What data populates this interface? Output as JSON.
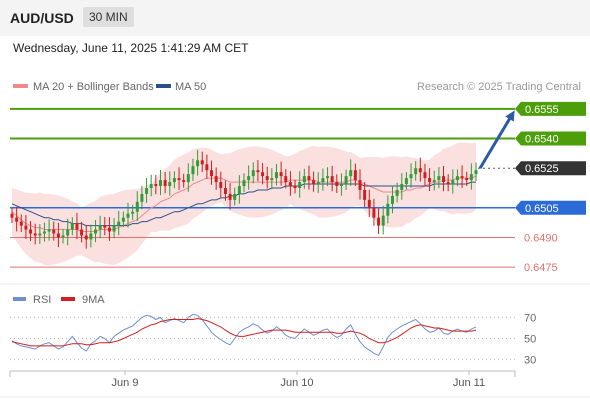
{
  "header": {
    "pair": "AUD/USD",
    "timeframe": "30 MIN"
  },
  "datetime": "Wednesday, June 11, 2025 1:41:29 AM CET",
  "legend": {
    "ma20": "MA 20 + Bollinger Bands",
    "ma50": "MA 50",
    "source": "Research © 2025 Trading Central"
  },
  "rsi_legend": {
    "rsi": "RSI",
    "ma": "9MA"
  },
  "colors": {
    "candle_up": "#2f9e3a",
    "candle_down": "#d31c1c",
    "ma20": "#f08888",
    "ma50": "#2d4f86",
    "band_fill": "#f9d6d6",
    "resistance": "#4c9e0a",
    "support_blue": "#2b6bd6",
    "support_red": "#e46f6f",
    "current": "#333333",
    "arrow": "#2b5aa8",
    "rsi": "#6f8fd0",
    "rsi_ma": "#d21f1f"
  },
  "chart_data": [
    {
      "type": "candlestick",
      "title": "",
      "ylim": [
        0.6469,
        0.6561
      ],
      "x_ticks": [
        "Jun 9",
        "Jun 10",
        "Jun 11"
      ],
      "levels": [
        {
          "label": "0.6555",
          "value": 0.6555,
          "kind": "resistance"
        },
        {
          "label": "0.6540",
          "value": 0.654,
          "kind": "resistance"
        },
        {
          "label": "0.6525",
          "value": 0.6525,
          "kind": "current"
        },
        {
          "label": "0.6505",
          "value": 0.6505,
          "kind": "pivot"
        },
        {
          "label": "0.6490",
          "value": 0.649,
          "kind": "support"
        },
        {
          "label": "0.6475",
          "value": 0.6475,
          "kind": "support"
        }
      ],
      "projection": {
        "from": 0.6525,
        "to": 0.6552
      },
      "close_series": [
        0.65,
        0.6498,
        0.6496,
        0.6494,
        0.6492,
        0.6491,
        0.6492,
        0.6493,
        0.6494,
        0.6492,
        0.649,
        0.6491,
        0.6494,
        0.6497,
        0.6494,
        0.6491,
        0.6489,
        0.6492,
        0.6494,
        0.6496,
        0.6495,
        0.6493,
        0.6496,
        0.6498,
        0.65,
        0.6502,
        0.6503,
        0.6508,
        0.6512,
        0.6515,
        0.6517,
        0.6516,
        0.6519,
        0.6516,
        0.6518,
        0.652,
        0.6519,
        0.6518,
        0.6522,
        0.6526,
        0.6529,
        0.6527,
        0.6524,
        0.6521,
        0.6518,
        0.6515,
        0.6512,
        0.6509,
        0.6512,
        0.6516,
        0.6519,
        0.6521,
        0.6524,
        0.6523,
        0.6521,
        0.6519,
        0.652,
        0.6523,
        0.6521,
        0.6518,
        0.6516,
        0.6515,
        0.6518,
        0.6521,
        0.6519,
        0.6517,
        0.6518,
        0.652,
        0.6521,
        0.6518,
        0.6516,
        0.6517,
        0.6521,
        0.6524,
        0.6519,
        0.6514,
        0.6509,
        0.6505,
        0.65,
        0.6496,
        0.6501,
        0.6507,
        0.6511,
        0.6514,
        0.6517,
        0.652,
        0.6522,
        0.6525,
        0.6523,
        0.652,
        0.6518,
        0.6519,
        0.6521,
        0.6518,
        0.6517,
        0.6519,
        0.6521,
        0.652,
        0.6519,
        0.6522,
        0.6524
      ],
      "ma20_series": [
        0.6503,
        0.6501,
        0.6499,
        0.6497,
        0.6496,
        0.6495,
        0.6495,
        0.6494,
        0.6494,
        0.6494,
        0.6494,
        0.6494,
        0.6494,
        0.6494,
        0.6494,
        0.6493,
        0.6493,
        0.6493,
        0.6493,
        0.6494,
        0.6494,
        0.6494,
        0.6494,
        0.6495,
        0.6496,
        0.6497,
        0.6498,
        0.6499,
        0.6501,
        0.6503,
        0.6505,
        0.6506,
        0.6508,
        0.6509,
        0.651,
        0.6512,
        0.6513,
        0.6514,
        0.6515,
        0.6517,
        0.6518,
        0.6519,
        0.652,
        0.652,
        0.652,
        0.652,
        0.6519,
        0.6518,
        0.6518,
        0.6518,
        0.6518,
        0.6518,
        0.6518,
        0.6518,
        0.6518,
        0.6518,
        0.6518,
        0.6518,
        0.6518,
        0.6518,
        0.6519,
        0.6519,
        0.6519,
        0.6519,
        0.6519,
        0.6519,
        0.6518,
        0.6518,
        0.6518,
        0.6518,
        0.6518,
        0.6518,
        0.6518,
        0.6519,
        0.6519,
        0.6518,
        0.6517,
        0.6516,
        0.6515,
        0.6514,
        0.6513,
        0.6513,
        0.6513,
        0.6513,
        0.6513,
        0.6514,
        0.6514,
        0.6515,
        0.6515,
        0.6516,
        0.6517,
        0.6518,
        0.6518,
        0.6519,
        0.6519,
        0.6519,
        0.652,
        0.652,
        0.652,
        0.652,
        0.6521
      ],
      "ma50_series": [
        0.6507,
        0.6506,
        0.6505,
        0.6504,
        0.6503,
        0.6502,
        0.6501,
        0.65,
        0.65,
        0.6499,
        0.6499,
        0.6498,
        0.6498,
        0.6497,
        0.6497,
        0.6497,
        0.6496,
        0.6496,
        0.6496,
        0.6496,
        0.6496,
        0.6496,
        0.6496,
        0.6496,
        0.6496,
        0.6496,
        0.6497,
        0.6497,
        0.6498,
        0.6498,
        0.6499,
        0.65,
        0.65,
        0.6501,
        0.6502,
        0.6503,
        0.6503,
        0.6504,
        0.6505,
        0.6506,
        0.6507,
        0.6507,
        0.6508,
        0.6509,
        0.6509,
        0.651,
        0.651,
        0.6511,
        0.6511,
        0.6512,
        0.6512,
        0.6513,
        0.6513,
        0.6514,
        0.6514,
        0.6514,
        0.6515,
        0.6515,
        0.6515,
        0.6516,
        0.6516,
        0.6516,
        0.6516,
        0.6517,
        0.6517,
        0.6517,
        0.6517,
        0.6517,
        0.6517,
        0.6517,
        0.6517,
        0.6517,
        0.6517,
        0.6517,
        0.6517,
        0.6517,
        0.6516,
        0.6516,
        0.6516,
        0.6516,
        0.6516,
        0.6516,
        0.6516,
        0.6516,
        0.6516,
        0.6516,
        0.6516,
        0.6516,
        0.6516,
        0.6516,
        0.6516,
        0.6517,
        0.6517,
        0.6517,
        0.6517,
        0.6517,
        0.6517,
        0.6517,
        0.6517,
        0.6518,
        0.6518
      ]
    },
    {
      "type": "line",
      "title": "",
      "ylim": [
        22,
        78
      ],
      "y_ticks": [
        "70",
        "50",
        "30"
      ],
      "rsi_series": [
        48,
        45,
        43,
        42,
        41,
        40,
        43,
        45,
        46,
        43,
        40,
        42,
        47,
        52,
        46,
        41,
        38,
        45,
        48,
        52,
        50,
        46,
        52,
        55,
        58,
        60,
        62,
        66,
        70,
        72,
        71,
        68,
        70,
        65,
        67,
        69,
        67,
        65,
        70,
        73,
        72,
        68,
        62,
        56,
        52,
        49,
        46,
        44,
        50,
        56,
        59,
        61,
        64,
        62,
        58,
        55,
        57,
        61,
        58,
        53,
        51,
        50,
        55,
        59,
        56,
        53,
        55,
        58,
        59,
        54,
        51,
        53,
        59,
        63,
        54,
        47,
        42,
        39,
        36,
        34,
        42,
        51,
        56,
        59,
        62,
        64,
        66,
        68,
        64,
        59,
        56,
        57,
        60,
        55,
        54,
        57,
        59,
        57,
        56,
        59,
        61
      ],
      "rsi_ma_series": [
        47,
        46,
        45,
        44,
        43,
        43,
        43,
        43,
        43,
        43,
        43,
        43,
        44,
        45,
        45,
        45,
        44,
        44,
        45,
        46,
        46,
        46,
        47,
        48,
        50,
        52,
        54,
        56,
        59,
        61,
        63,
        64,
        66,
        67,
        68,
        68,
        68,
        68,
        68,
        68,
        69,
        68,
        67,
        65,
        63,
        61,
        58,
        55,
        53,
        52,
        52,
        53,
        54,
        55,
        56,
        57,
        58,
        58,
        58,
        58,
        57,
        56,
        56,
        56,
        56,
        56,
        56,
        56,
        56,
        56,
        55,
        55,
        56,
        57,
        56,
        55,
        53,
        50,
        48,
        46,
        46,
        47,
        49,
        51,
        54,
        57,
        60,
        62,
        63,
        62,
        61,
        60,
        60,
        59,
        58,
        57,
        57,
        57,
        57,
        57,
        58
      ]
    }
  ]
}
